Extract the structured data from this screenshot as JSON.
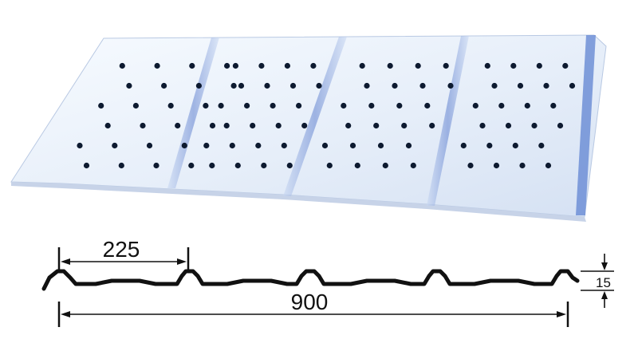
{
  "figure": {
    "panel_color": "#eef4fb",
    "shadow_color": "#9fb4d6",
    "rib_color": "#6f8fd6",
    "hole_color": "#0d1a30",
    "line_color": "#111111"
  },
  "dimensions": {
    "rib_spacing": "225",
    "total_width": "900",
    "rib_height": "15"
  }
}
